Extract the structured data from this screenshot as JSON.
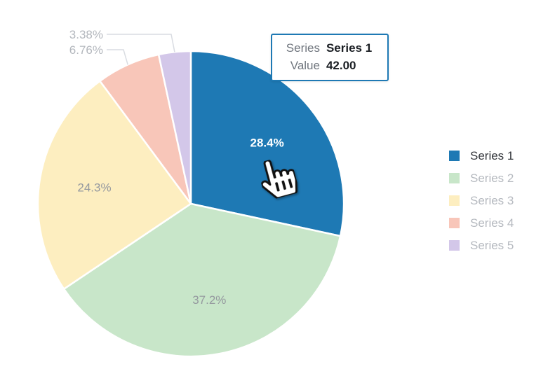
{
  "chart_data": {
    "type": "pie",
    "title": "",
    "categories": [
      "Series 1",
      "Series 2",
      "Series 3",
      "Series 4",
      "Series 5"
    ],
    "values": [
      28.4,
      37.2,
      24.3,
      6.76,
      3.38
    ],
    "unit": "percent",
    "slice_labels": [
      "28.4%",
      "37.2%",
      "24.3%",
      "6.76%",
      "3.38%"
    ],
    "colors": [
      "#1e79b4",
      "#c8e6c9",
      "#fdeec0",
      "#f8c6b9",
      "#d3c7e9"
    ],
    "label_placement": [
      "inside",
      "inside",
      "inside",
      "outside",
      "outside"
    ],
    "hovered": {
      "series": "Series 1",
      "value": "42.00"
    },
    "legend_position": "right",
    "style": {
      "inside_label_color_hovered": "#ffffff",
      "inside_label_color": "#95999f",
      "outside_label_color": "#b3b7bd",
      "leader_line_color": "#d9dce2",
      "slice_stroke": "#ffffff"
    }
  },
  "tooltip": {
    "border_color": "#1e79b4",
    "rows": [
      {
        "label": "Series",
        "value": "Series 1"
      },
      {
        "label": "Value",
        "value": "42.00"
      }
    ]
  },
  "legend": {
    "items": [
      {
        "label": "Series 1",
        "color": "#1e79b4",
        "active": true
      },
      {
        "label": "Series 2",
        "color": "#c8e6c9",
        "active": false
      },
      {
        "label": "Series 3",
        "color": "#fdeec0",
        "active": false
      },
      {
        "label": "Series 4",
        "color": "#f8c6b9",
        "active": false
      },
      {
        "label": "Series 5",
        "color": "#d3c7e9",
        "active": false
      }
    ],
    "active_text_color": "#33363b",
    "inactive_text_color": "#b5b9bf"
  },
  "cursor": {
    "icon": "hand-pointer"
  }
}
